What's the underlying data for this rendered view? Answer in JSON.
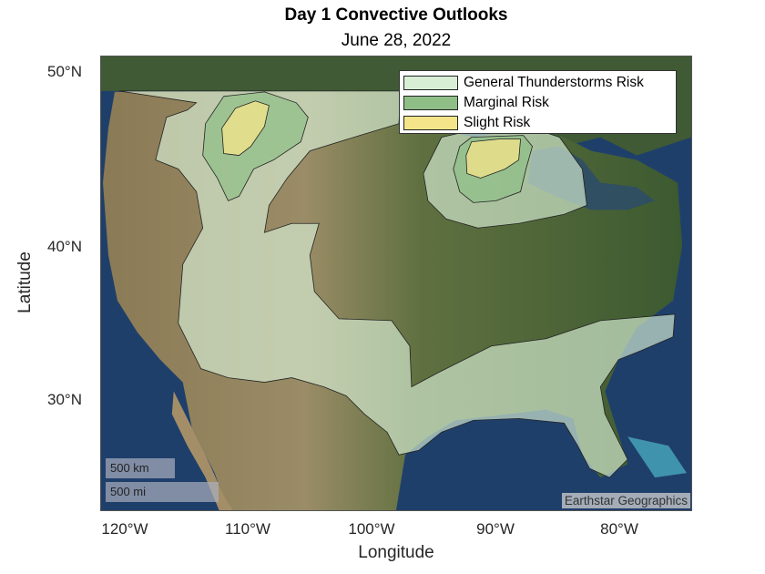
{
  "chart_data": {
    "type": "map",
    "title": "Day 1 Convective Outlooks",
    "subtitle": "June 28, 2022",
    "xlabel": "Longitude",
    "ylabel": "Latitude",
    "x_ticks": [
      "120°W",
      "110°W",
      "100°W",
      "90°W",
      "80°W"
    ],
    "y_ticks": [
      "50°N",
      "40°N",
      "30°N"
    ],
    "basemap": "satellite",
    "legend": {
      "placement": "top-right",
      "entries": [
        {
          "label": "General Thunderstorms Risk",
          "color": "#d8efd6"
        },
        {
          "label": "Marginal Risk",
          "color": "#8fbf87"
        },
        {
          "label": "Slight Risk",
          "color": "#f5e58a"
        }
      ]
    },
    "scale_bar": {
      "km": "500 km",
      "mi": "500 mi"
    },
    "credit": "Earthstar Geographics"
  }
}
